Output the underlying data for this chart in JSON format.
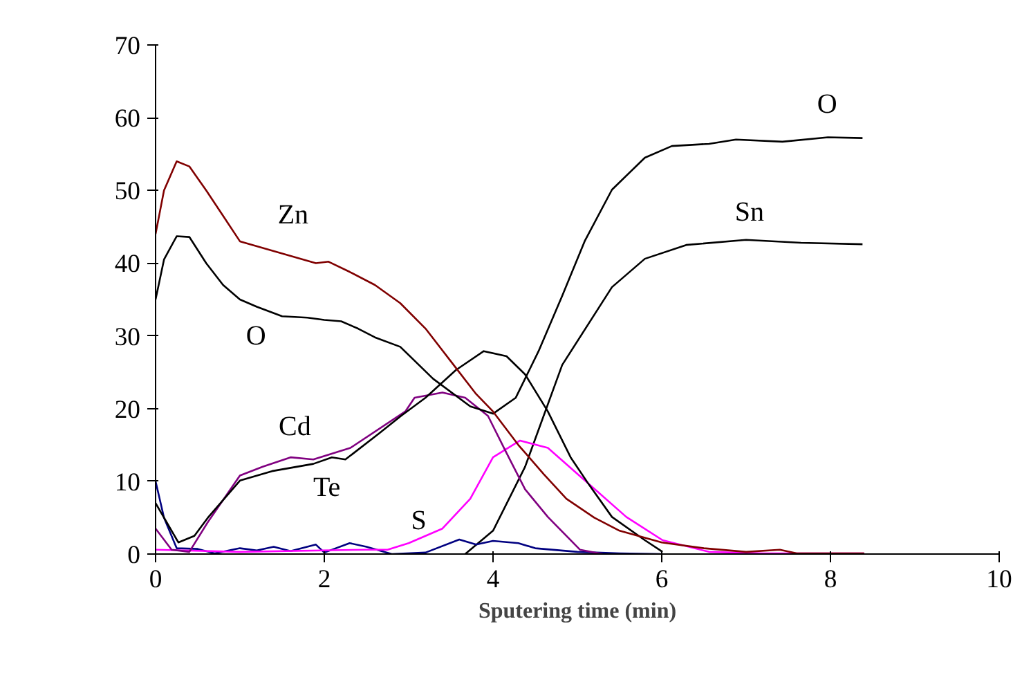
{
  "chart_data": {
    "type": "line",
    "xlabel": "Sputering time (min)",
    "xlim": [
      0,
      10
    ],
    "xticks": [
      0,
      2,
      4,
      6,
      8,
      10
    ],
    "ylim": [
      0,
      70
    ],
    "yticks": [
      0,
      10,
      20,
      30,
      40,
      50,
      60,
      70
    ],
    "grid": false,
    "marker": "none",
    "line_style": "solid",
    "series": [
      {
        "color": "#800000",
        "x": [
          0,
          0.1,
          0.25,
          0.4,
          0.6,
          0.8,
          1.0,
          1.3,
          1.6,
          1.9,
          2.05,
          2.3,
          2.6,
          2.9,
          3.2,
          3.5,
          3.8,
          4.0,
          4.3,
          4.6,
          4.87,
          5.2,
          5.5,
          6.0,
          6.5,
          7.0,
          7.4,
          7.6,
          8.4
        ],
        "values": [
          44,
          50,
          54,
          53.3,
          50,
          46.5,
          43,
          42,
          41,
          40,
          40.2,
          38.8,
          37,
          34.5,
          31,
          26.5,
          22,
          19.6,
          15,
          11,
          7.6,
          5,
          3.2,
          1.6,
          0.8,
          0.3,
          0.6,
          0.1,
          0.1
        ]
      },
      {
        "color": "#000000",
        "x": [
          0,
          0.1,
          0.25,
          0.4,
          0.6,
          0.8,
          1.0,
          1.2,
          1.5,
          1.8,
          2.0,
          2.2,
          2.4,
          2.6,
          2.9,
          3.29,
          3.73,
          4.0,
          4.27,
          4.54,
          4.82,
          5.09,
          5.41,
          5.8,
          6.12,
          6.56,
          6.88,
          7.43,
          7.97,
          8.38
        ],
        "values": [
          35,
          40.5,
          43.7,
          43.6,
          40,
          37,
          35,
          34,
          32.7,
          32.5,
          32.2,
          32,
          31,
          29.8,
          28.5,
          24.1,
          20.3,
          19.3,
          21.5,
          27.9,
          35.5,
          43.1,
          50.1,
          54.5,
          56.1,
          56.4,
          57,
          56.7,
          57.3,
          57.2
        ]
      },
      {
        "color": "#000000",
        "x": [
          0,
          0.27,
          0.46,
          0.62,
          1.0,
          1.38,
          1.87,
          2.09,
          2.25,
          2.64,
          2.91,
          3.2,
          3.56,
          3.89,
          4.16,
          4.38,
          4.65,
          4.92,
          5.14,
          5.41,
          5.8,
          6.01
        ],
        "values": [
          7,
          1.6,
          2.5,
          5,
          10.1,
          11.4,
          12.4,
          13.3,
          13,
          16.5,
          19,
          21.5,
          25.3,
          27.9,
          27.2,
          24.7,
          19.6,
          13.3,
          9.5,
          5.1,
          1.9,
          0.3
        ]
      },
      {
        "color": "#800080",
        "x": [
          0,
          0.19,
          0.4,
          0.62,
          1.0,
          1.27,
          1.6,
          1.87,
          2.31,
          2.96,
          3.07,
          3.4,
          3.67,
          3.94,
          4.16,
          4.38,
          4.65,
          5.03,
          5.3
        ],
        "values": [
          3.5,
          0.6,
          0.3,
          4.4,
          10.8,
          12,
          13.3,
          13,
          14.6,
          19.6,
          21.5,
          22.2,
          21.5,
          19,
          13.9,
          8.9,
          5.1,
          0.6,
          0
        ]
      },
      {
        "color": "#ff00ff",
        "x": [
          0,
          1.0,
          2.5,
          2.75,
          3.0,
          3.4,
          3.73,
          4.0,
          4.32,
          4.65,
          5.09,
          5.58,
          6.01,
          6.56,
          7.2,
          8.4
        ],
        "values": [
          0.6,
          0.3,
          0.6,
          0.6,
          1.5,
          3.5,
          7.6,
          13.3,
          15.6,
          14.6,
          10.1,
          5.1,
          1.9,
          0.3,
          0.1,
          0.1
        ]
      },
      {
        "color": "#000080",
        "x": [
          0,
          0.1,
          0.25,
          0.5,
          0.7,
          1.0,
          1.2,
          1.4,
          1.6,
          1.9,
          2.0,
          2.3,
          2.5,
          2.8,
          3.2,
          3.6,
          3.8,
          4.0,
          4.3,
          4.5,
          5.0,
          5.5,
          6.0
        ],
        "values": [
          10,
          5,
          0.8,
          0.7,
          0.1,
          0.8,
          0.5,
          1.0,
          0.4,
          1.3,
          0.2,
          1.5,
          1.0,
          0,
          0.2,
          2.0,
          1.3,
          1.8,
          1.5,
          0.8,
          0.3,
          0.1,
          0
        ]
      },
      {
        "color": "#000000",
        "x": [
          3.67,
          4.0,
          4.38,
          4.82,
          5.41,
          5.8,
          6.29,
          7.0,
          7.65,
          8.38
        ],
        "values": [
          0,
          3.2,
          12,
          26,
          36.7,
          40.6,
          42.5,
          43.2,
          42.8,
          42.6
        ]
      }
    ],
    "annotations": [
      "Zn",
      "O",
      "Cd",
      "Te",
      "S",
      "O",
      "Sn"
    ]
  }
}
